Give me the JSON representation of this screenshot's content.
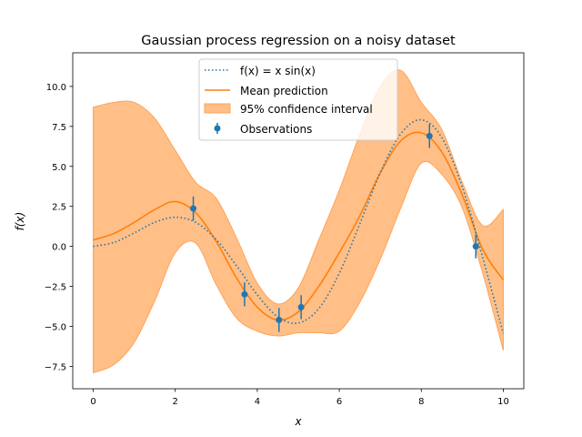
{
  "chart_data": {
    "type": "line",
    "title": "Gaussian process regression on a noisy dataset",
    "xlabel": "x",
    "ylabel": "f(x)",
    "xlim": [
      -0.5,
      10.5
    ],
    "ylim": [
      -8.9,
      12.1
    ],
    "xticks": [
      "0",
      "2",
      "4",
      "6",
      "8",
      "10"
    ],
    "xtick_values": [
      0,
      2,
      4,
      6,
      8,
      10
    ],
    "yticks": [
      "−7.5",
      "−5.0",
      "−2.5",
      "0.0",
      "2.5",
      "5.0",
      "7.5",
      "10.0"
    ],
    "ytick_values": [
      -7.5,
      -5,
      -2.5,
      0,
      2.5,
      5,
      7.5,
      10
    ],
    "grid": false,
    "legend_placement": "upper center",
    "colors": {
      "true_function": "#1f77b4",
      "mean": "#ff7f0e",
      "ci_fill": "#ffbf86",
      "observations": "#1f77b4"
    },
    "legend": [
      "f(x) = x sin(x)",
      "Mean prediction",
      "95% confidence interval",
      "Observations"
    ],
    "x": [
      0,
      0.5,
      1,
      1.5,
      2,
      2.5,
      3,
      3.5,
      4,
      4.5,
      5,
      5.5,
      6,
      6.5,
      7,
      7.5,
      8,
      8.5,
      9,
      9.5,
      10
    ],
    "series": [
      {
        "name": "f(x) = x sin(x)",
        "style": "dotted",
        "values": [
          0,
          0.24,
          0.84,
          1.5,
          1.82,
          1.5,
          0.42,
          -1.23,
          -3.03,
          -4.4,
          -4.79,
          -3.89,
          -1.68,
          1.4,
          4.6,
          7.04,
          7.91,
          6.8,
          3.71,
          -0.72,
          -5.44
        ]
      },
      {
        "name": "Mean prediction",
        "style": "solid",
        "values": [
          0.4,
          0.8,
          1.5,
          2.3,
          2.8,
          2.1,
          0.3,
          -2.0,
          -3.8,
          -4.6,
          -4.1,
          -2.5,
          -0.4,
          1.9,
          4.6,
          6.6,
          7.1,
          5.9,
          3.2,
          -0.2,
          -2.1
        ]
      }
    ],
    "confidence_interval": {
      "name": "95% confidence interval",
      "upper": [
        8.7,
        9.0,
        9.0,
        8.0,
        6.0,
        4.0,
        3.0,
        0.5,
        -2.3,
        -3.6,
        -2.6,
        0.4,
        3.5,
        7.0,
        10.0,
        11.0,
        9.0,
        7.3,
        4.0,
        1.3,
        2.3
      ],
      "lower": [
        -7.9,
        -7.4,
        -6.0,
        -3.4,
        -0.4,
        0.2,
        -2.4,
        -4.5,
        -5.3,
        -5.6,
        -5.4,
        -5.4,
        -5.3,
        -3.5,
        -0.8,
        2.4,
        5.2,
        4.5,
        2.4,
        -1.7,
        -6.5
      ]
    },
    "observations": {
      "name": "Observations",
      "x": [
        2.44,
        3.69,
        4.53,
        5.07,
        8.2,
        9.33
      ],
      "y": [
        2.37,
        -3.0,
        -4.6,
        -3.8,
        6.9,
        0.0
      ],
      "error": [
        0.75,
        0.75,
        0.75,
        0.75,
        0.75,
        0.75
      ]
    }
  }
}
